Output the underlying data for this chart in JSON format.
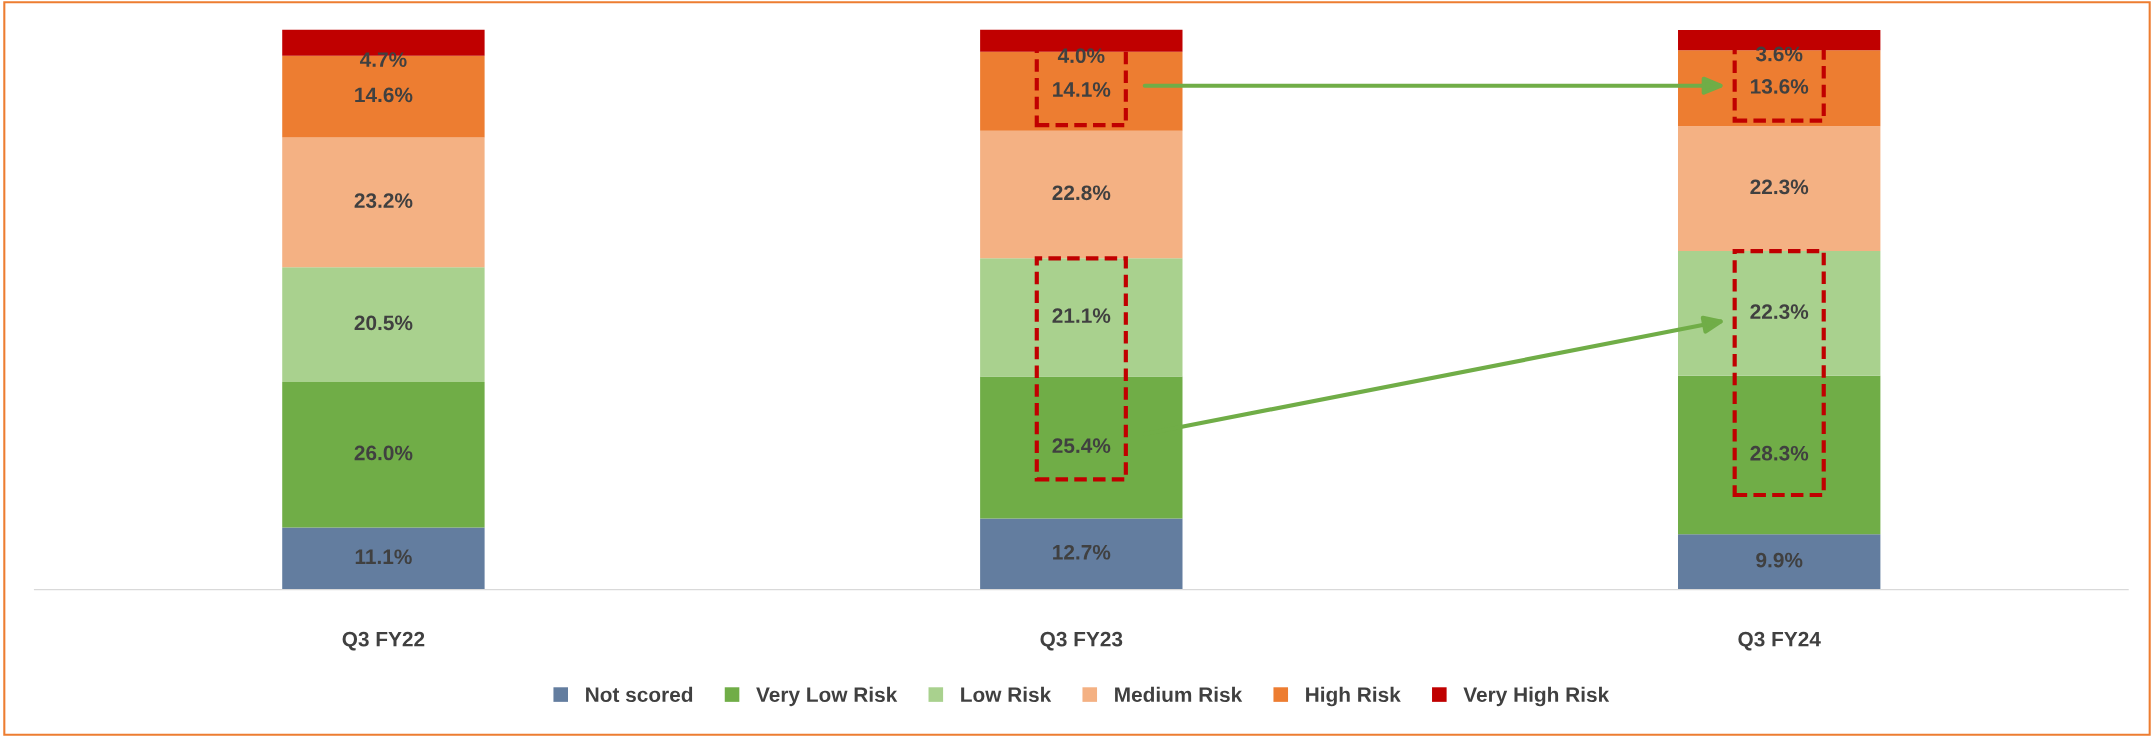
{
  "chart_data": {
    "type": "bar",
    "stacked": true,
    "categories": [
      "Q3 FY22",
      "Q3 FY23",
      "Q3 FY24"
    ],
    "series": [
      {
        "name": "Not scored",
        "color": "#637d9f",
        "values": [
          11.1,
          12.7,
          9.9
        ],
        "value_labels": [
          "11.1%",
          "12.7%",
          "9.9%"
        ]
      },
      {
        "name": "Very Low Risk",
        "color": "#70ad47",
        "values": [
          26.0,
          25.4,
          28.3
        ],
        "value_labels": [
          "26.0%",
          "25.4%",
          "28.3%"
        ]
      },
      {
        "name": "Low Risk",
        "color": "#a9d18e",
        "values": [
          20.5,
          21.1,
          22.3
        ],
        "value_labels": [
          "20.5%",
          "21.1%",
          "22.3%"
        ]
      },
      {
        "name": "Medium Risk",
        "color": "#f4b183",
        "values": [
          23.2,
          22.8,
          22.3
        ],
        "value_labels": [
          "23.2%",
          "22.8%",
          "22.3%"
        ]
      },
      {
        "name": "High Risk",
        "color": "#ed7d31",
        "values": [
          14.6,
          14.1,
          13.6
        ],
        "value_labels": [
          "14.6%",
          "14.1%",
          "13.6%"
        ]
      },
      {
        "name": "Very High Risk",
        "color": "#c00000",
        "values": [
          4.7,
          4.0,
          3.6
        ],
        "value_labels": [
          "4.7%",
          "4.0%",
          "3.6%"
        ]
      }
    ],
    "legend": "bottom",
    "grid": false,
    "tick_labels": "x"
  }
}
